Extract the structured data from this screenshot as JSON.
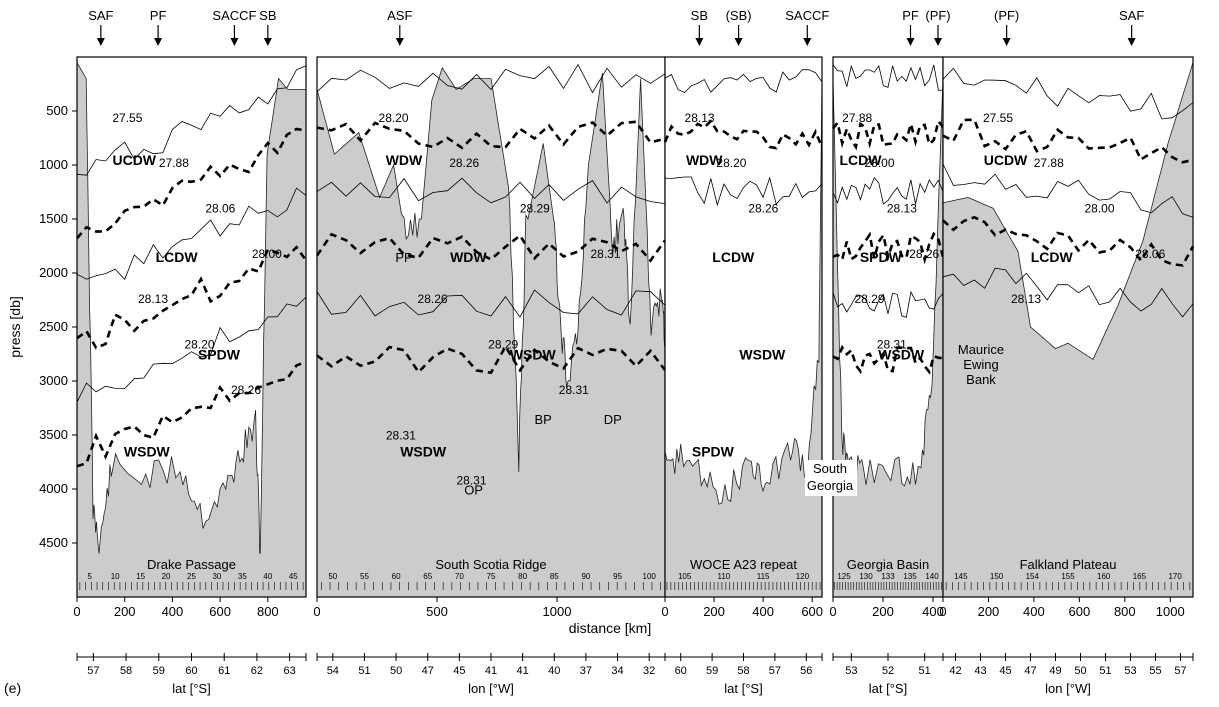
{
  "figure_label": "(e)",
  "chart_data": {
    "type": "line",
    "ylabel": "press [db]",
    "xlabel": "distance [km]",
    "y_range": [
      0,
      5000
    ],
    "y_ticks": [
      500,
      1000,
      1500,
      2000,
      2500,
      3000,
      3500,
      4000,
      4500
    ],
    "panels": [
      {
        "name": "Drake Passage",
        "x_range": [
          0,
          960
        ],
        "x_ticks": [
          0,
          200,
          400,
          600,
          800
        ],
        "station_numbers": [
          "5",
          "10",
          "15",
          "20",
          "25",
          "30",
          "35",
          "40",
          "45"
        ],
        "fronts": [
          {
            "label": "SAF",
            "x": 100
          },
          {
            "label": "PF",
            "x": 340
          },
          {
            "label": "SACCF",
            "x": 660
          },
          {
            "label": "SB",
            "x": 800
          }
        ],
        "water_masses": [
          "UCDW",
          "LCDW",
          "SPDW",
          "WSDW"
        ],
        "isopycnal_labels": [
          "27.55",
          "27.88",
          "28.06",
          "28.00",
          "28.13",
          "28.20",
          "28.26"
        ],
        "lat_axis": {
          "label": "lat [°S]",
          "ticks": [
            "57",
            "58",
            "59",
            "60",
            "61",
            "62",
            "63"
          ]
        }
      },
      {
        "name": "South Scotia Ridge",
        "x_range": [
          0,
          1450
        ],
        "x_ticks": [
          0,
          500,
          1000
        ],
        "station_numbers": [
          "50",
          "55",
          "60",
          "65",
          "70",
          "75",
          "80",
          "85",
          "90",
          "95",
          "100"
        ],
        "fronts": [
          {
            "label": "ASF",
            "x": 345
          }
        ],
        "water_masses": [
          "WDW",
          "WDW",
          "WSDW",
          "WSDW"
        ],
        "isopycnal_labels": [
          "28.20",
          "28.26",
          "28.29",
          "28.31",
          "28.26",
          "28.29",
          "28.31",
          "28.31",
          "28.31"
        ],
        "topo_labels": [
          "PP",
          "OP",
          "BP",
          "DP"
        ],
        "lon_axis": {
          "label": "lon [°W]",
          "ticks": [
            "54",
            "51",
            "50",
            "47",
            "45",
            "41",
            "41",
            "40",
            "37",
            "34",
            "32"
          ]
        }
      },
      {
        "name": "WOCE A23 repeat",
        "x_range": [
          0,
          640
        ],
        "x_ticks": [
          0,
          200,
          400,
          600
        ],
        "station_numbers": [
          "105",
          "110",
          "115",
          "120"
        ],
        "fronts": [
          {
            "label": "SB",
            "x": 140
          },
          {
            "label": "(SB)",
            "x": 300
          },
          {
            "label": "SACCF",
            "x": 580
          }
        ],
        "water_masses": [
          "WDW",
          "LCDW",
          "WSDW",
          "SPDW"
        ],
        "isopycnal_labels": [
          "28.13",
          "28.20",
          "28.26"
        ],
        "lat_axis": {
          "label": "lat [°S]",
          "ticks": [
            "60",
            "59",
            "58",
            "57",
            "56"
          ]
        }
      },
      {
        "name": "Georgia Basin",
        "x_range": [
          0,
          440
        ],
        "x_ticks": [
          0,
          200,
          400
        ],
        "station_numbers": [
          "125",
          "130",
          "133",
          "135",
          "140"
        ],
        "fronts": [
          {
            "label": "PF",
            "x": 310
          },
          {
            "label": "(PF)",
            "x": 420
          }
        ],
        "water_masses": [
          "LCDW",
          "SPDW",
          "WSDW"
        ],
        "isopycnal_labels": [
          "27.88",
          "28.00",
          "28.13",
          "28.26",
          "28.29",
          "28.31"
        ],
        "lat_axis": {
          "label": "lat [°S]",
          "ticks": [
            "53",
            "52",
            "51"
          ]
        }
      },
      {
        "name": "Falkland Plateau",
        "x_range": [
          0,
          1100
        ],
        "x_ticks": [
          0,
          200,
          400,
          600,
          800,
          1000
        ],
        "station_numbers": [
          "145",
          "150",
          "154",
          "155",
          "160",
          "165",
          "170"
        ],
        "fronts": [
          {
            "label": "(PF)",
            "x": 280
          },
          {
            "label": "SAF",
            "x": 830
          }
        ],
        "water_masses": [
          "UCDW",
          "LCDW"
        ],
        "isopycnal_labels": [
          "27.55",
          "27.88",
          "28.00",
          "28.06",
          "28.13"
        ],
        "topo_labels": [
          "Maurice",
          "Ewing",
          "Bank"
        ],
        "lon_axis": {
          "label": "lon [°W]",
          "ticks": [
            "42",
            "43",
            "45",
            "47",
            "49",
            "50",
            "51",
            "53",
            "55",
            "57"
          ]
        }
      }
    ],
    "annotation": "South Georgia"
  }
}
